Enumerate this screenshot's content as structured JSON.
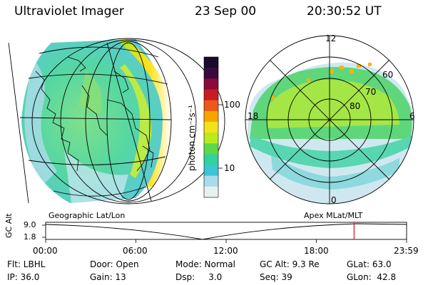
{
  "header": {
    "instrument": "Ultraviolet Imager",
    "date": "23 Sep 00",
    "time": "20:30:52 UT"
  },
  "left_panel": {
    "caption": "Geographic Lat/Lon"
  },
  "right_panel": {
    "caption": "Apex MLat/MLT",
    "mlt_labels": [
      "12",
      "18",
      "6",
      "0"
    ],
    "mlat_labels": [
      "60",
      "70",
      "80"
    ]
  },
  "colorbar": {
    "unit_label": "photon cm⁻²s⁻¹",
    "ticks": [
      "100",
      "10"
    ],
    "colors": [
      "#1a0a2e",
      "#3a0a3e",
      "#8a0a3a",
      "#c81b22",
      "#ea5a18",
      "#f6a500",
      "#f2e21a",
      "#b8ea20",
      "#5ed84a",
      "#2fd49a",
      "#3cc4d8",
      "#a8dce8",
      "#e8f0f0"
    ]
  },
  "timeline": {
    "axis_label": "GC Alt",
    "y_ticks": [
      "9.0",
      "1.8"
    ],
    "x_ticks": [
      "00:00",
      "06:00",
      "12:00",
      "18:00",
      "23:59"
    ],
    "marker_hour": 20.51
  },
  "footer": {
    "col1": [
      "Flt: LBHL",
      "IP: 36.0"
    ],
    "col2": [
      "Door: Open",
      "Gain: 13"
    ],
    "col3": [
      "Mode: Normal",
      "Dsp:     3.0"
    ],
    "col4": [
      "GC Alt: 9.3 Re",
      "Seq: 39"
    ],
    "col5": [
      "GLat: 63.0",
      "GLon:  42.8"
    ]
  }
}
